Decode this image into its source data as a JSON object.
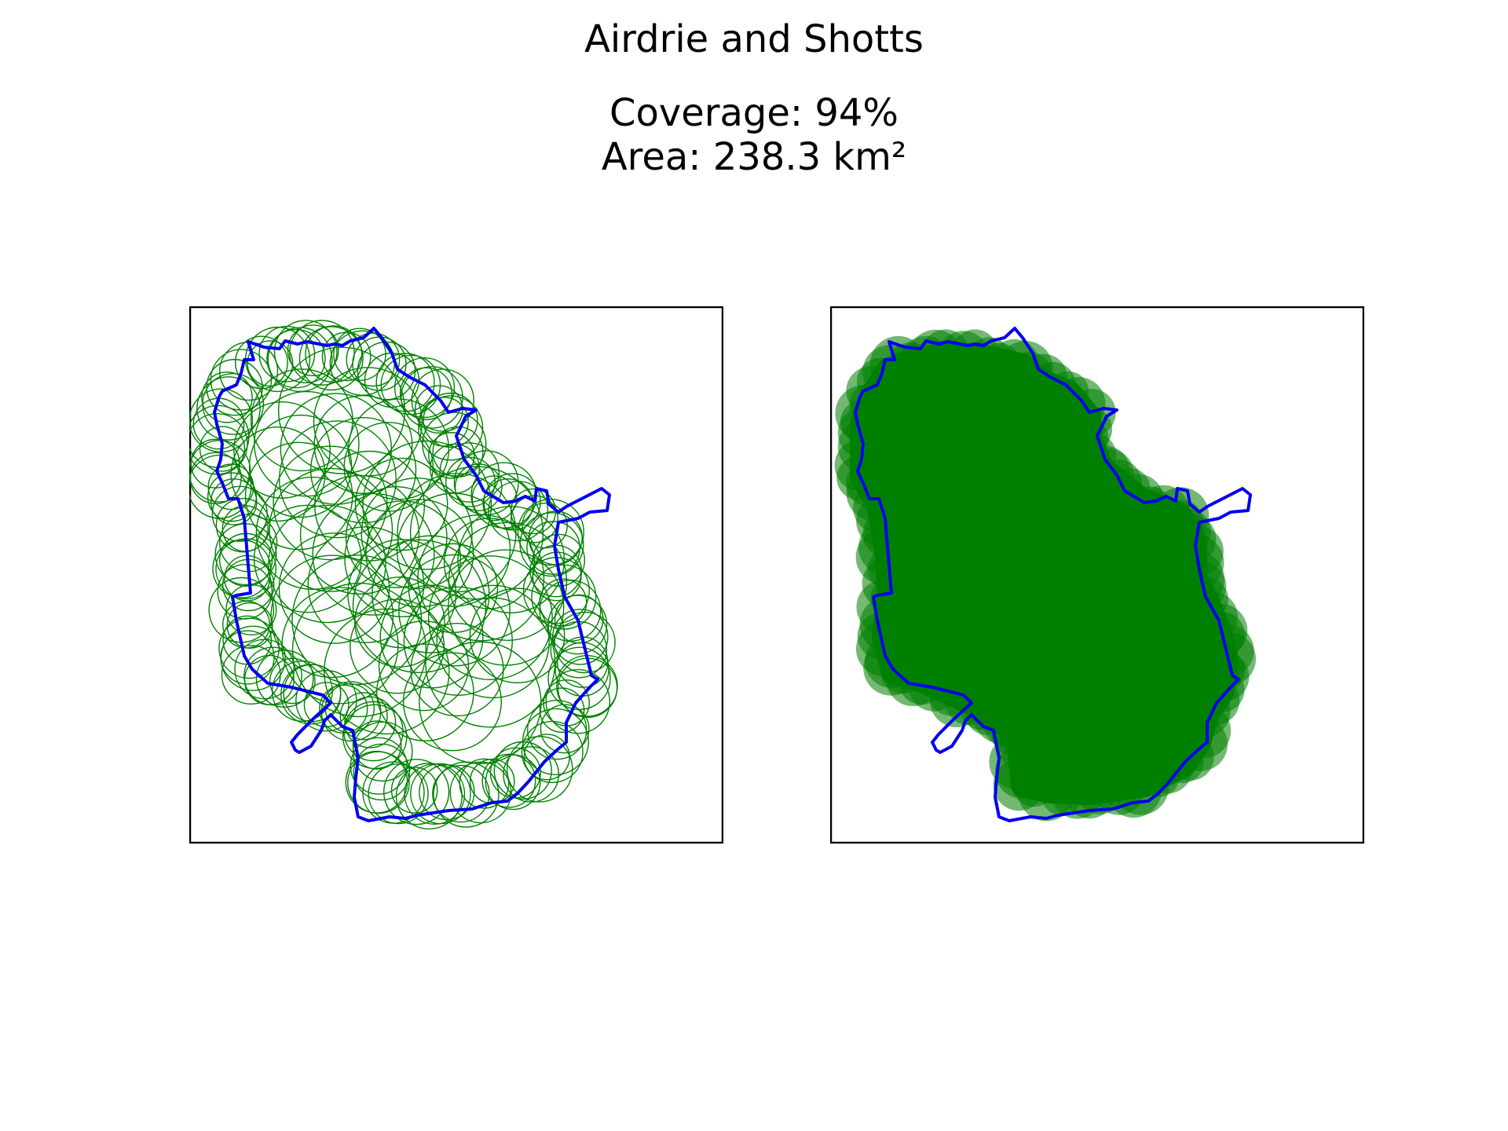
{
  "figure": {
    "title": "Airdrie and Shotts",
    "coverage_text": "Coverage: 94%",
    "area_text": "Area: 238.3 km²"
  },
  "colors": {
    "boundary": "#0000ee",
    "coverage": "#008000",
    "frame": "#000000"
  },
  "panels": [
    {
      "id": "left",
      "mode": "circle-outlines"
    },
    {
      "id": "right",
      "mode": "filled-coverage"
    }
  ]
}
